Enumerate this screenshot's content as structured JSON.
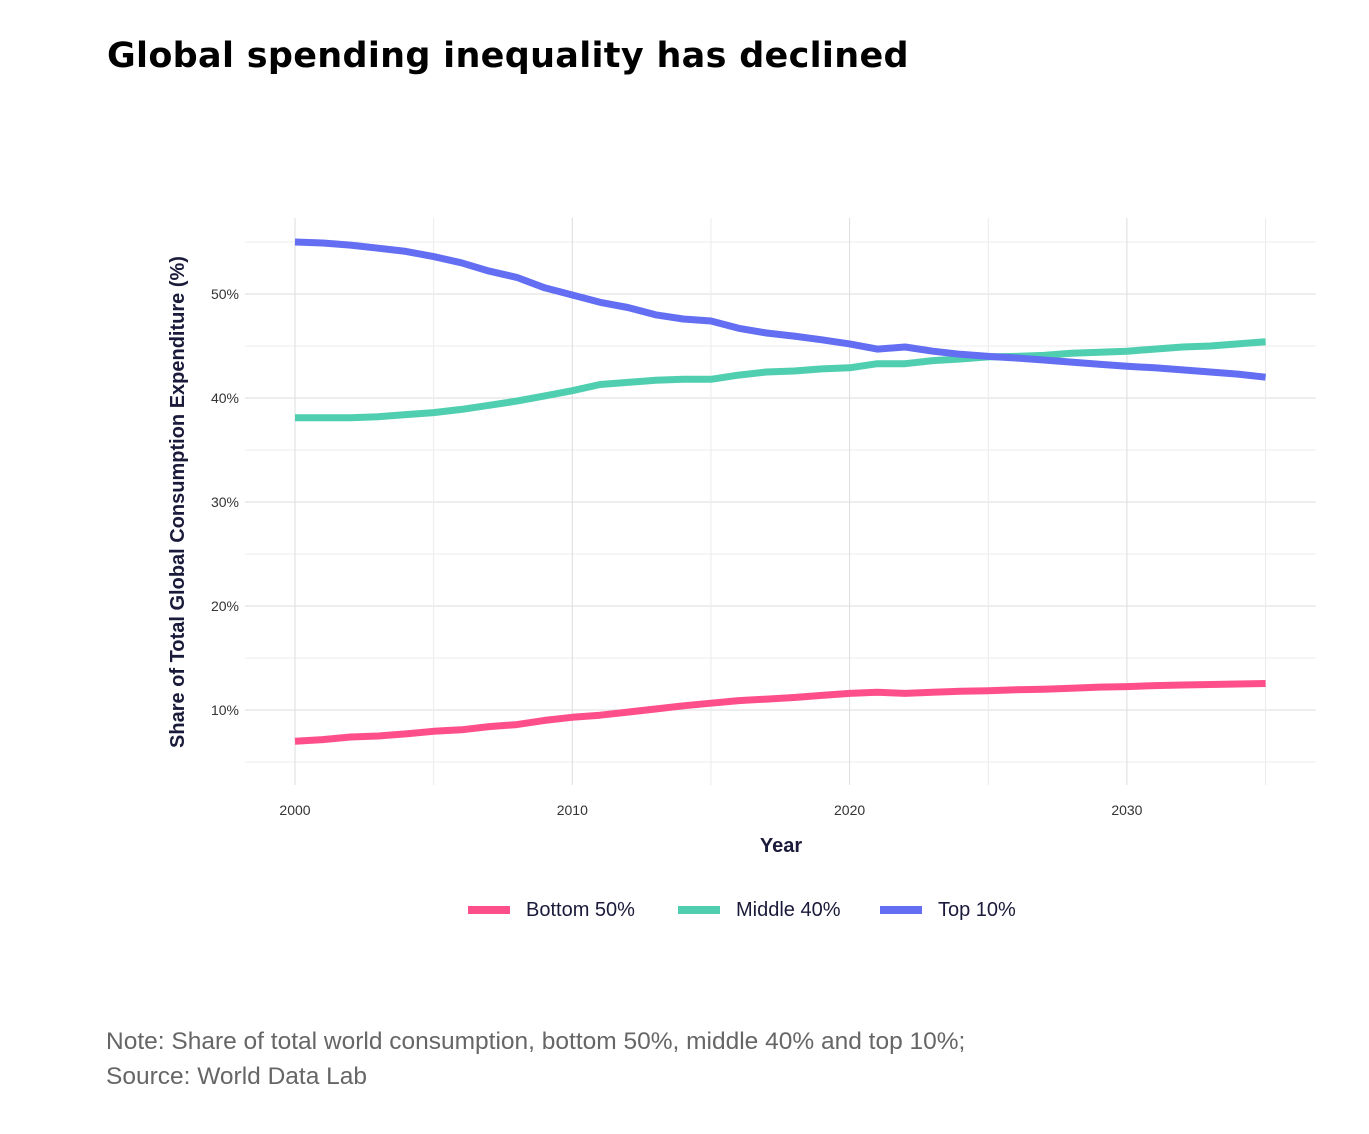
{
  "title": "Global spending inequality has declined",
  "note": "Note: Share of total world consumption, bottom 50%, middle 40% and top 10%; Source: World Data Lab",
  "chart_data": {
    "type": "line",
    "title": "Global spending inequality has declined",
    "xlabel": "Year",
    "ylabel": "Share of Total Global Consumption Expenditure (%)",
    "xlim": [
      1998.2,
      2036.8
    ],
    "ylim": [
      3,
      56.5
    ],
    "xticks": [
      2000,
      2010,
      2020,
      2030
    ],
    "xtick_labels": [
      "2000",
      "2010",
      "2020",
      "2030"
    ],
    "yticks": [
      10,
      20,
      30,
      40,
      50
    ],
    "ytick_labels": [
      "10%",
      "20%",
      "30%",
      "40%",
      "50%"
    ],
    "grid": true,
    "legend_position": "bottom",
    "x": [
      2000,
      2001,
      2002,
      2003,
      2004,
      2005,
      2006,
      2007,
      2008,
      2009,
      2010,
      2011,
      2012,
      2013,
      2014,
      2015,
      2016,
      2017,
      2018,
      2019,
      2020,
      2021,
      2022,
      2023,
      2024,
      2025,
      2026,
      2027,
      2028,
      2029,
      2030,
      2031,
      2032,
      2033,
      2034,
      2035
    ],
    "series": [
      {
        "name": "Bottom 50%",
        "color": "#ff4f8b",
        "values": [
          7.0,
          7.15,
          7.4,
          7.5,
          7.7,
          7.95,
          8.1,
          8.4,
          8.6,
          9.0,
          9.3,
          9.5,
          9.8,
          10.1,
          10.4,
          10.65,
          10.9,
          11.05,
          11.2,
          11.4,
          11.6,
          11.7,
          11.6,
          11.7,
          11.8,
          11.85,
          11.95,
          12.0,
          12.1,
          12.2,
          12.25,
          12.35,
          12.4,
          12.45,
          12.5,
          12.55
        ]
      },
      {
        "name": "Middle 40%",
        "color": "#4fcfb0",
        "values": [
          38.1,
          38.1,
          38.1,
          38.2,
          38.4,
          38.6,
          38.9,
          39.3,
          39.7,
          40.2,
          40.7,
          41.3,
          41.5,
          41.7,
          41.8,
          41.8,
          42.2,
          42.5,
          42.6,
          42.8,
          42.9,
          43.3,
          43.3,
          43.6,
          43.75,
          43.95,
          44.0,
          44.1,
          44.3,
          44.4,
          44.5,
          44.7,
          44.9,
          45.0,
          45.2,
          45.4
        ]
      },
      {
        "name": "Top 10%",
        "color": "#636ef2",
        "values": [
          55.0,
          54.9,
          54.7,
          54.4,
          54.1,
          53.6,
          53.0,
          52.2,
          51.6,
          50.6,
          49.9,
          49.2,
          48.7,
          48.0,
          47.6,
          47.4,
          46.7,
          46.25,
          45.95,
          45.6,
          45.2,
          44.7,
          44.9,
          44.5,
          44.2,
          44.0,
          43.85,
          43.65,
          43.45,
          43.25,
          43.05,
          42.9,
          42.7,
          42.5,
          42.3,
          42.0
        ]
      }
    ]
  }
}
